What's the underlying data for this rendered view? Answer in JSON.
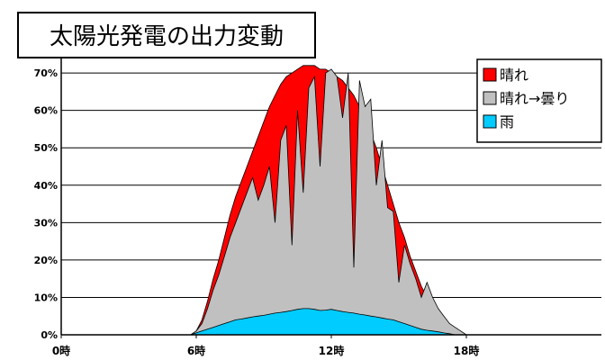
{
  "chart_data": {
    "type": "area",
    "title": "太陽光発電の出力変動",
    "xlabel": "",
    "ylabel": "",
    "x_ticks": [
      "0時",
      "6時",
      "12時",
      "18時"
    ],
    "x_tick_hours": [
      0,
      6,
      12,
      18
    ],
    "xlim": [
      0,
      24
    ],
    "y_ticks": [
      "0%",
      "10%",
      "20%",
      "30%",
      "40%",
      "50%",
      "60%",
      "70%"
    ],
    "ylim": [
      0,
      77
    ],
    "legend_position": "top-right",
    "grid": "horizontal",
    "x_hours": [
      5.5,
      5.75,
      6.0,
      6.25,
      6.5,
      6.75,
      7.0,
      7.25,
      7.5,
      7.75,
      8.0,
      8.25,
      8.5,
      8.75,
      9.0,
      9.25,
      9.5,
      9.75,
      10.0,
      10.25,
      10.5,
      10.75,
      11.0,
      11.25,
      11.5,
      11.75,
      12.0,
      12.25,
      12.5,
      12.75,
      13.0,
      13.25,
      13.5,
      13.75,
      14.0,
      14.25,
      14.5,
      14.75,
      15.0,
      15.25,
      15.5,
      15.75,
      16.0,
      16.25,
      16.5,
      16.75,
      17.0,
      17.25,
      17.5,
      17.75,
      18.0,
      18.25,
      18.5
    ],
    "series": [
      {
        "name": "晴れ",
        "color": "#ff0000",
        "values": [
          0,
          0,
          1,
          4,
          9,
          15,
          20,
          26,
          32,
          37,
          41,
          45,
          49,
          53,
          57,
          61,
          64,
          67,
          69,
          70,
          71,
          72,
          72,
          72,
          71,
          71,
          70,
          69,
          68,
          66,
          64,
          61,
          58,
          54,
          50,
          45,
          40,
          35,
          30,
          26,
          21,
          17,
          13,
          10,
          7,
          4,
          2,
          1,
          0,
          0,
          0,
          0,
          0
        ]
      },
      {
        "name": "晴れ→曇り",
        "color": "#c0c0c0",
        "values": [
          0,
          0,
          1,
          3,
          7,
          12,
          16,
          21,
          26,
          30,
          34,
          38,
          42,
          36,
          40,
          45,
          30,
          52,
          56,
          24,
          60,
          38,
          66,
          69,
          45,
          70,
          71,
          69,
          58,
          70,
          18,
          68,
          61,
          63,
          40,
          52,
          34,
          33,
          14,
          24,
          19,
          15,
          10,
          14,
          10,
          7,
          5,
          3,
          2,
          1,
          0,
          0,
          0
        ]
      },
      {
        "name": "雨",
        "color": "#00ccff",
        "values": [
          0,
          0,
          0.5,
          1,
          1.5,
          2,
          2.5,
          3,
          3.5,
          4,
          4.2,
          4.5,
          4.8,
          5,
          5.2,
          5.5,
          5.8,
          6,
          6.2,
          6.5,
          6.8,
          7,
          7,
          6.8,
          6.5,
          6.6,
          6.8,
          6.5,
          6.2,
          6,
          5.8,
          5.5,
          5.3,
          5,
          4.8,
          4.5,
          4.2,
          4,
          3.5,
          3,
          2.5,
          2,
          1.5,
          1.2,
          1,
          0.8,
          0.5,
          0.3,
          0,
          0,
          0,
          0,
          0
        ]
      }
    ]
  }
}
